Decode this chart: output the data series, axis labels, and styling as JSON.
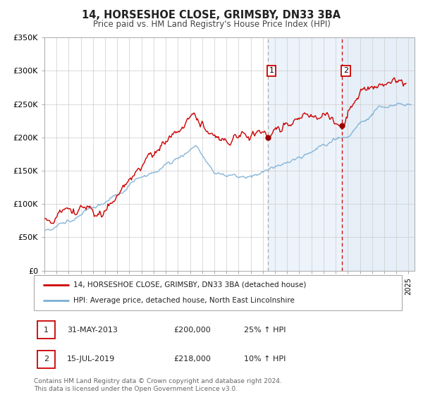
{
  "title": "14, HORSESHOE CLOSE, GRIMSBY, DN33 3BA",
  "subtitle": "Price paid vs. HM Land Registry's House Price Index (HPI)",
  "legend_line1": "14, HORSESHOE CLOSE, GRIMSBY, DN33 3BA (detached house)",
  "legend_line2": "HPI: Average price, detached house, North East Lincolnshire",
  "sale1_date": "31-MAY-2013",
  "sale1_price": "£200,000",
  "sale1_hpi": "25% ↑ HPI",
  "sale2_date": "15-JUL-2019",
  "sale2_price": "£218,000",
  "sale2_hpi": "10% ↑ HPI",
  "footer": "Contains HM Land Registry data © Crown copyright and database right 2024.\nThis data is licensed under the Open Government Licence v3.0.",
  "hpi_line_color": "#7bafd4",
  "house_line_color": "#cc0000",
  "sale_dot_color": "#990000",
  "vline1_color": "#888888",
  "vline2_color": "#cc0000",
  "bg_shade_color": "#ddeaf7",
  "ylim": [
    0,
    350000
  ],
  "yticks": [
    0,
    50000,
    100000,
    150000,
    200000,
    250000,
    300000,
    350000
  ],
  "ytick_labels": [
    "£0",
    "£50K",
    "£100K",
    "£150K",
    "£200K",
    "£250K",
    "£300K",
    "£350K"
  ],
  "sale1_x": 2013.41,
  "sale1_y": 200000,
  "sale2_x": 2019.54,
  "sale2_y": 218000,
  "xmin": 1995.0,
  "xmax": 2025.5,
  "grid_color": "#cccccc",
  "title_fontsize": 10.5,
  "subtitle_fontsize": 8.5,
  "tick_fontsize": 7.0,
  "ytick_fontsize": 8.0,
  "legend_fontsize": 7.5,
  "table_fontsize": 8.0,
  "footer_fontsize": 6.5
}
